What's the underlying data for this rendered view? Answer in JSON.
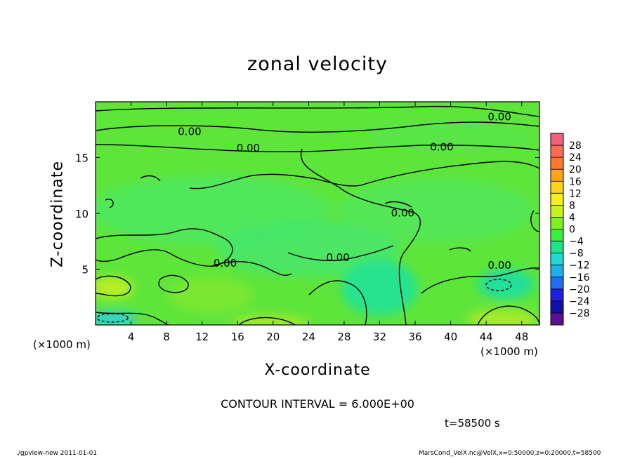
{
  "chart_data": {
    "type": "heatmap",
    "title": "zonal velocity",
    "xlabel": "X-coordinate",
    "ylabel": "Z-coordinate",
    "x_unit_labels": [
      "(×1000 m)",
      "(×1000 m)"
    ],
    "xlim": [
      0,
      50
    ],
    "ylim": [
      0,
      20
    ],
    "x_ticks": [
      4,
      8,
      12,
      16,
      20,
      24,
      28,
      32,
      36,
      40,
      44,
      48
    ],
    "y_ticks": [
      5,
      10,
      15
    ],
    "colorbar": {
      "labels": [
        "28",
        "24",
        "20",
        "16",
        "12",
        "8",
        "4",
        "0",
        "−4",
        "−8",
        "−12",
        "−16",
        "−20",
        "−24",
        "−28"
      ],
      "levels": [
        28,
        24,
        20,
        16,
        12,
        8,
        4,
        0,
        -4,
        -8,
        -12,
        -16,
        -20,
        -24,
        -28
      ],
      "colors": [
        "#f0607a",
        "#ff6a55",
        "#ff7a2a",
        "#ffa21a",
        "#ffd21a",
        "#f4f01a",
        "#c8f21a",
        "#7ff020",
        "#3cef3c",
        "#1fe389",
        "#1fd8d0",
        "#1fb2ea",
        "#1f6ff0",
        "#2020e0",
        "#1010a8",
        "#5a1090"
      ]
    },
    "contour_labels": [
      {
        "text": "0.00",
        "x": 45.5,
        "z": 18.7
      },
      {
        "text": "0.00",
        "x": 10.6,
        "z": 17.4
      },
      {
        "text": "0.00",
        "x": 17.2,
        "z": 15.9
      },
      {
        "text": "0.00",
        "x": 39.0,
        "z": 16.0
      },
      {
        "text": "0.00",
        "x": 34.6,
        "z": 10.1
      },
      {
        "text": "0.00",
        "x": 27.3,
        "z": 6.1
      },
      {
        "text": "0.00",
        "x": 14.6,
        "z": 5.6
      },
      {
        "text": "0.00",
        "x": 45.5,
        "z": 5.4
      }
    ],
    "contour_interval": "CONTOUR INTERVAL = 6.000E+00",
    "time": "t=58500 s"
  },
  "footer": {
    "left": "./gpview-new  2011-01-01",
    "right": "MarsCond_VelX.nc@VelX,x=0:50000,z=0:20000,t=58500"
  }
}
